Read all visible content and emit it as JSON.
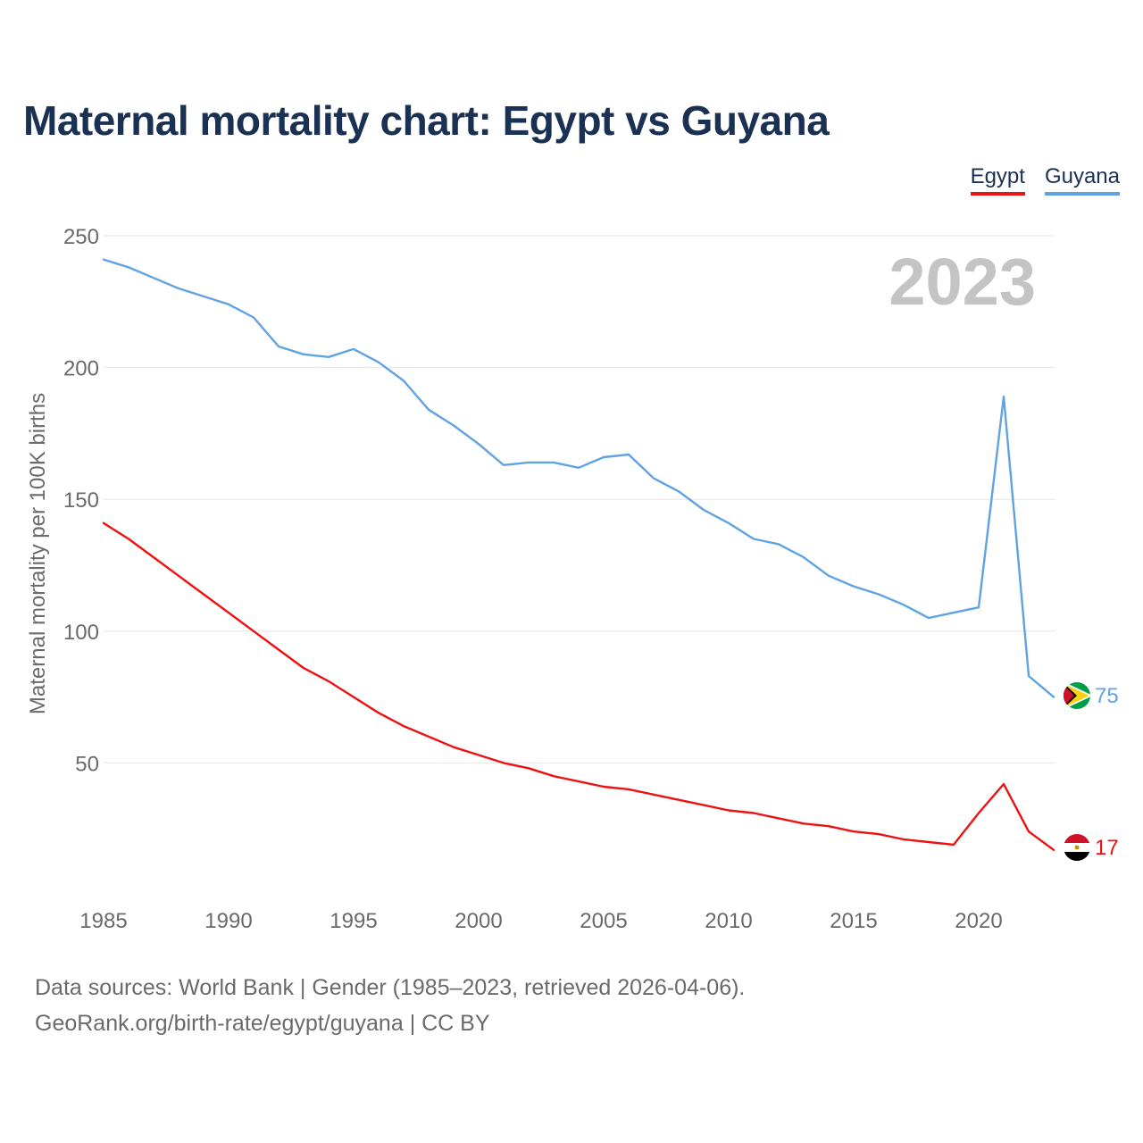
{
  "title": "Maternal mortality chart: Egypt vs Guyana",
  "year_label": "2023",
  "footer": {
    "line1": "Data sources: World Bank | Gender (1985–2023, retrieved 2026-04-06).",
    "line2": "GeoRank.org/birth-rate/egypt/guyana | CC BY"
  },
  "chart_data": {
    "type": "line",
    "title": "Maternal mortality chart: Egypt vs Guyana",
    "xlabel": "",
    "ylabel": "Maternal mortality per 100K births",
    "xlim": [
      1985,
      2023
    ],
    "ylim": [
      0,
      250
    ],
    "x_ticks": [
      1985,
      1990,
      1995,
      2000,
      2005,
      2010,
      2015,
      2020
    ],
    "y_ticks": [
      50,
      100,
      150,
      200,
      250
    ],
    "grid": true,
    "legend_position": "top-right",
    "x": [
      1985,
      1986,
      1987,
      1988,
      1989,
      1990,
      1991,
      1992,
      1993,
      1994,
      1995,
      1996,
      1997,
      1998,
      1999,
      2000,
      2001,
      2002,
      2003,
      2004,
      2005,
      2006,
      2007,
      2008,
      2009,
      2010,
      2011,
      2012,
      2013,
      2014,
      2015,
      2016,
      2017,
      2018,
      2019,
      2020,
      2021,
      2022,
      2023
    ],
    "series": [
      {
        "name": "Egypt",
        "color": "#ee1111",
        "end_label": "17",
        "values": [
          141,
          135,
          128,
          121,
          114,
          107,
          100,
          93,
          86,
          81,
          75,
          69,
          64,
          60,
          56,
          53,
          50,
          48,
          45,
          43,
          41,
          40,
          38,
          36,
          34,
          32,
          31,
          29,
          27,
          26,
          24,
          23,
          21,
          20,
          19,
          31,
          42,
          24,
          17
        ]
      },
      {
        "name": "Guyana",
        "color": "#5fa3e3",
        "end_label": "75",
        "values": [
          241,
          238,
          234,
          230,
          227,
          224,
          219,
          208,
          205,
          204,
          207,
          202,
          195,
          184,
          178,
          171,
          163,
          164,
          164,
          162,
          166,
          167,
          158,
          153,
          146,
          141,
          135,
          133,
          128,
          121,
          117,
          114,
          110,
          105,
          107,
          109,
          189,
          83,
          75
        ]
      }
    ]
  }
}
